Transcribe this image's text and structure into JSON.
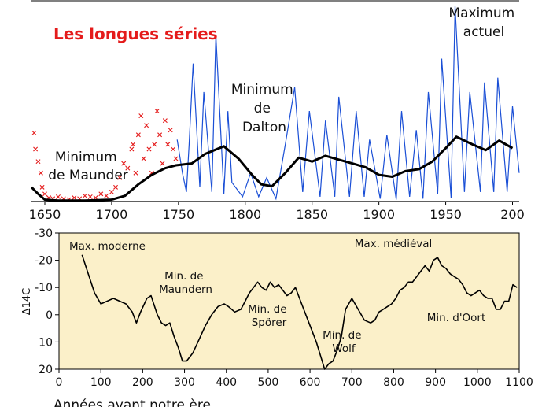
{
  "chart_data": [
    {
      "type": "line",
      "title": "Les longues séries",
      "title_color": "#e41b1b",
      "xlabel": "",
      "ylabel": "",
      "xlim": [
        1640,
        2005
      ],
      "ylim": [
        0,
        200
      ],
      "grid": false,
      "x_ticks": [
        "1650",
        "1700",
        "1750",
        "1800",
        "1850",
        "1900",
        "1950",
        "200"
      ],
      "annotations": {
        "maunder": [
          "Minimum",
          "de Maunder"
        ],
        "dalton": [
          "Minimum",
          "de",
          "Dalton"
        ],
        "maximum": [
          "Maximum",
          "actuel"
        ]
      },
      "colors": {
        "early_obs": "#e41b1b",
        "monthly": "#1a4fd6",
        "smoothed": "#000000"
      },
      "series": [
        {
          "marker": "x",
          "x": [
            1642,
            1643,
            1645,
            1647,
            1648,
            1650,
            1653,
            1656,
            1660,
            1664,
            1668,
            1672,
            1676,
            1680,
            1684,
            1688,
            1692,
            1696,
            1700,
            1703,
            1706,
            1709,
            1712,
            1715,
            1716,
            1718,
            1720,
            1722,
            1724,
            1726,
            1728,
            1730,
            1732,
            1734,
            1736,
            1738,
            1740,
            1742,
            1744,
            1746,
            1748
          ],
          "y": [
            72,
            55,
            42,
            30,
            15,
            8,
            4,
            3,
            5,
            3,
            2,
            4,
            3,
            6,
            5,
            4,
            8,
            6,
            10,
            15,
            25,
            40,
            35,
            55,
            60,
            30,
            70,
            90,
            45,
            80,
            55,
            30,
            60,
            95,
            70,
            40,
            85,
            60,
            75,
            55,
            45
          ]
        },
        {
          "x": [
            1749,
            1753,
            1756,
            1758,
            1761,
            1766,
            1769,
            1775,
            1778,
            1784,
            1787,
            1790,
            1798,
            1804,
            1810,
            1816,
            1823,
            1830,
            1837,
            1843,
            1848,
            1856,
            1860,
            1867,
            1870,
            1878,
            1883,
            1889,
            1893,
            1901,
            1906,
            1913,
            1917,
            1923,
            1928,
            1933,
            1937,
            1944,
            1947,
            1954,
            1957,
            1964,
            1968,
            1976,
            1979,
            1986,
            1989,
            1996,
            2000,
            2005
          ],
          "y": [
            65,
            30,
            10,
            60,
            145,
            15,
            115,
            10,
            175,
            8,
            95,
            20,
            5,
            30,
            5,
            25,
            3,
            60,
            120,
            10,
            95,
            5,
            85,
            5,
            110,
            5,
            95,
            5,
            65,
            3,
            70,
            2,
            95,
            5,
            75,
            3,
            115,
            8,
            150,
            4,
            205,
            10,
            115,
            10,
            125,
            10,
            130,
            10,
            100,
            30
          ]
        },
        {
          "x": [
            1640,
            1645,
            1650,
            1660,
            1680,
            1700,
            1710,
            1720,
            1730,
            1740,
            1748,
            1760,
            1770,
            1784,
            1795,
            1805,
            1812,
            1820,
            1830,
            1840,
            1850,
            1860,
            1870,
            1880,
            1890,
            1900,
            1910,
            1920,
            1930,
            1940,
            1950,
            1958,
            1970,
            1980,
            1990,
            2000
          ],
          "y": [
            15,
            8,
            2,
            1,
            1,
            2,
            6,
            18,
            28,
            35,
            38,
            40,
            50,
            58,
            45,
            28,
            18,
            16,
            30,
            46,
            42,
            48,
            44,
            40,
            36,
            28,
            26,
            32,
            34,
            42,
            56,
            68,
            60,
            54,
            64,
            56
          ]
        }
      ]
    },
    {
      "type": "line",
      "title": "",
      "xlabel": "Années avant notre ère",
      "ylabel": "Δ14C",
      "xlim": [
        0,
        1100
      ],
      "ylim": [
        20,
        -30
      ],
      "grid": false,
      "background": "#fbf0c9",
      "x_ticks": [
        "0",
        "100",
        "200",
        "300",
        "400",
        "500",
        "600",
        "700",
        "800",
        "900",
        "1000",
        "1100"
      ],
      "y_ticks": [
        "-30",
        "-20",
        "-10",
        "0",
        "10",
        "20"
      ],
      "annotations": {
        "max_moderne": [
          "Max. moderne"
        ],
        "min_maundern": [
          "Min. de",
          "Maundern"
        ],
        "min_sporer": [
          "Min. de",
          "Spörer"
        ],
        "max_medieval": [
          "Max. médiéval"
        ],
        "min_wolf": [
          "Min. de",
          "Wolf"
        ],
        "min_oort": [
          "Min. d'Oort"
        ]
      },
      "series": [
        {
          "x": [
            55,
            70,
            85,
            100,
            115,
            130,
            145,
            160,
            175,
            185,
            195,
            210,
            220,
            235,
            245,
            255,
            265,
            275,
            285,
            295,
            305,
            320,
            335,
            350,
            365,
            380,
            395,
            405,
            420,
            435,
            445,
            455,
            465,
            475,
            485,
            495,
            505,
            515,
            525,
            535,
            545,
            555,
            565,
            575,
            585,
            595,
            605,
            615,
            625,
            635,
            645,
            655,
            665,
            675,
            685,
            700,
            715,
            730,
            745,
            755,
            765,
            775,
            785,
            795,
            805,
            815,
            825,
            835,
            845,
            855,
            865,
            875,
            885,
            895,
            905,
            915,
            925,
            935,
            945,
            955,
            965,
            975,
            985,
            995,
            1005,
            1015,
            1025,
            1035,
            1045,
            1055,
            1065,
            1075,
            1085,
            1095
          ],
          "y": [
            -22,
            -15,
            -8,
            -4,
            -5,
            -6,
            -5,
            -4,
            -1,
            3,
            -1,
            -6,
            -7,
            0,
            3,
            4,
            3,
            8,
            12,
            17,
            17,
            14,
            9,
            4,
            0,
            -3,
            -4,
            -3,
            -1,
            -2,
            -5,
            -8,
            -10,
            -12,
            -10,
            -9,
            -12,
            -10,
            -11,
            -9,
            -7,
            -8,
            -10,
            -6,
            -2,
            2,
            6,
            10,
            15,
            20,
            18,
            17,
            13,
            8,
            -2,
            -6,
            -2,
            2,
            3,
            2,
            -1,
            -2,
            -3,
            -4,
            -6,
            -9,
            -10,
            -12,
            -12,
            -14,
            -16,
            -18,
            -16,
            -20,
            -21,
            -18,
            -17,
            -15,
            -14,
            -13,
            -11,
            -8,
            -7,
            -8,
            -9,
            -7,
            -6,
            -6,
            -2,
            -2,
            -5,
            -5,
            -11,
            -10
          ]
        }
      ]
    }
  ]
}
